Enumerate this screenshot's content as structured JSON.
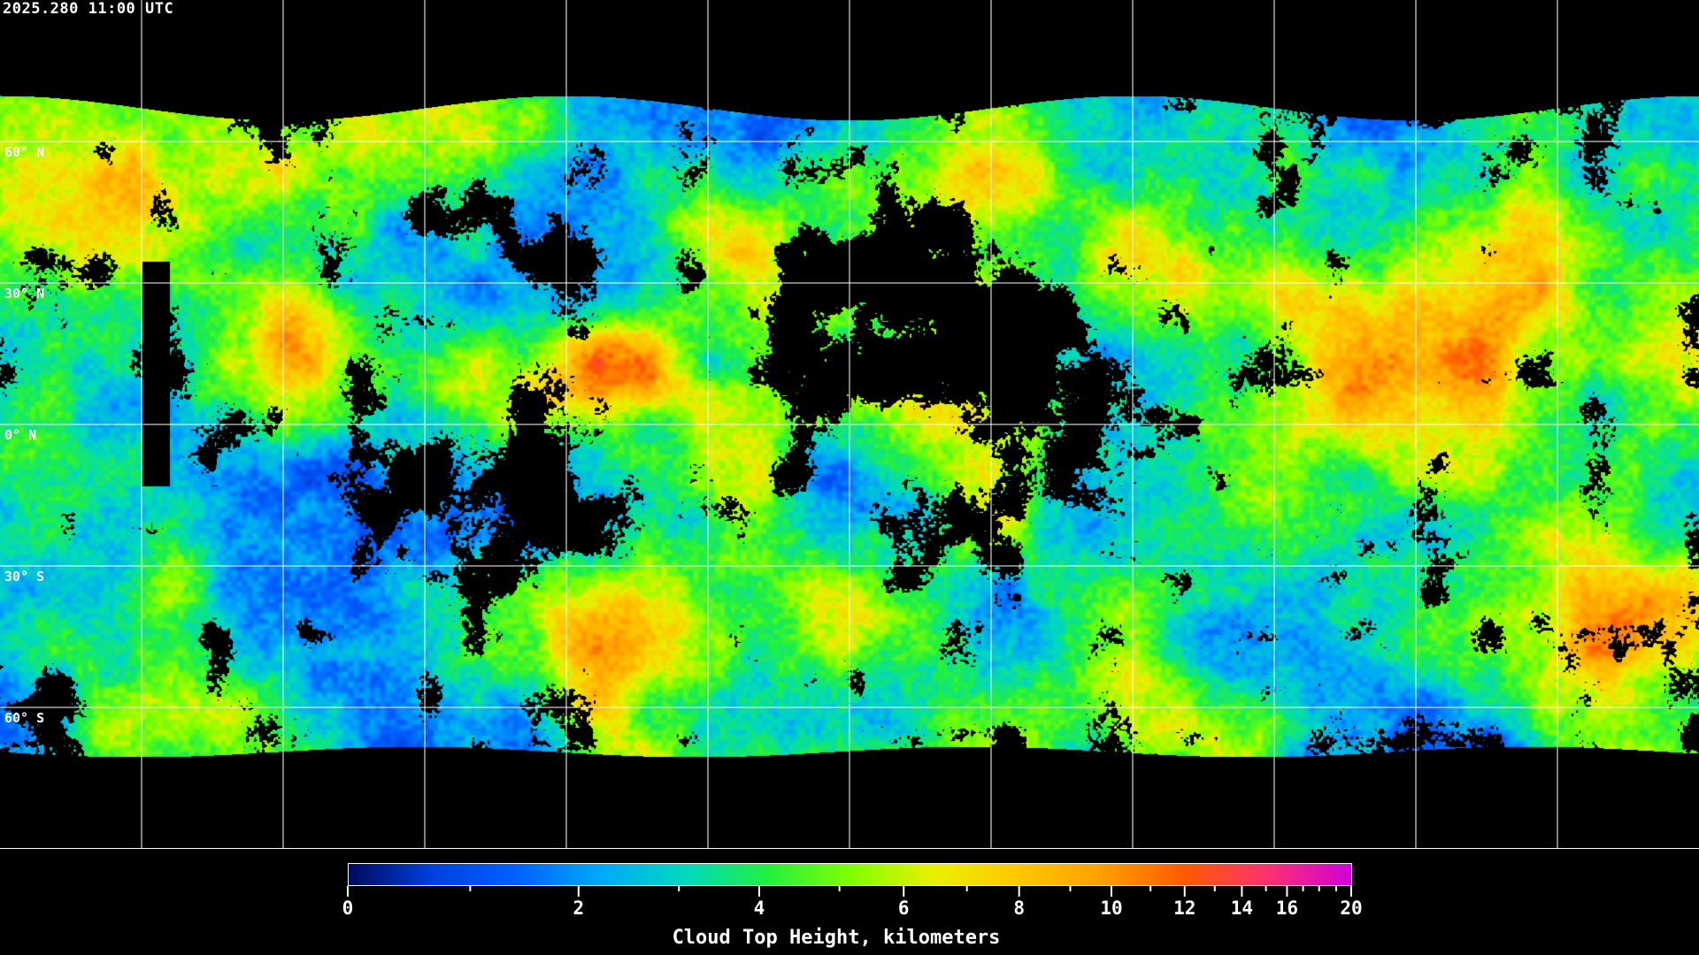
{
  "timestamp": "2025.280 11:00 UTC",
  "latitude_labels": [
    {
      "label": "60° N",
      "lat": 60
    },
    {
      "label": "30° N",
      "lat": 30
    },
    {
      "label": "0° N",
      "lat": 0
    },
    {
      "label": "30° S",
      "lat": -30
    },
    {
      "label": "60° S",
      "lat": -60
    }
  ],
  "graticule": {
    "lon_step_deg": 30,
    "lat_step_deg": 30,
    "color": "#ffffff"
  },
  "colorbar": {
    "title": "Cloud Top Height, kilometers",
    "min": 0,
    "max": 20,
    "ticks": [
      {
        "value": 0,
        "label": "0"
      },
      {
        "value": 2,
        "label": "2"
      },
      {
        "value": 4,
        "label": "4"
      },
      {
        "value": 6,
        "label": "6"
      },
      {
        "value": 8,
        "label": "8"
      },
      {
        "value": 10,
        "label": "10"
      },
      {
        "value": 12,
        "label": "12"
      },
      {
        "value": 14,
        "label": "14"
      },
      {
        "value": 16,
        "label": "16"
      },
      {
        "value": 20,
        "label": "20"
      }
    ],
    "minor_ticks": [
      1,
      3,
      5,
      7,
      9,
      11,
      13,
      15,
      17,
      18,
      19
    ],
    "colors": [
      "#000a5a",
      "#0040e0",
      "#0060ff",
      "#00a8f8",
      "#00d8c0",
      "#20f040",
      "#80ff00",
      "#e8f000",
      "#ffc800",
      "#ffa000",
      "#ff5a00",
      "#ff3070",
      "#d000d8"
    ]
  }
}
